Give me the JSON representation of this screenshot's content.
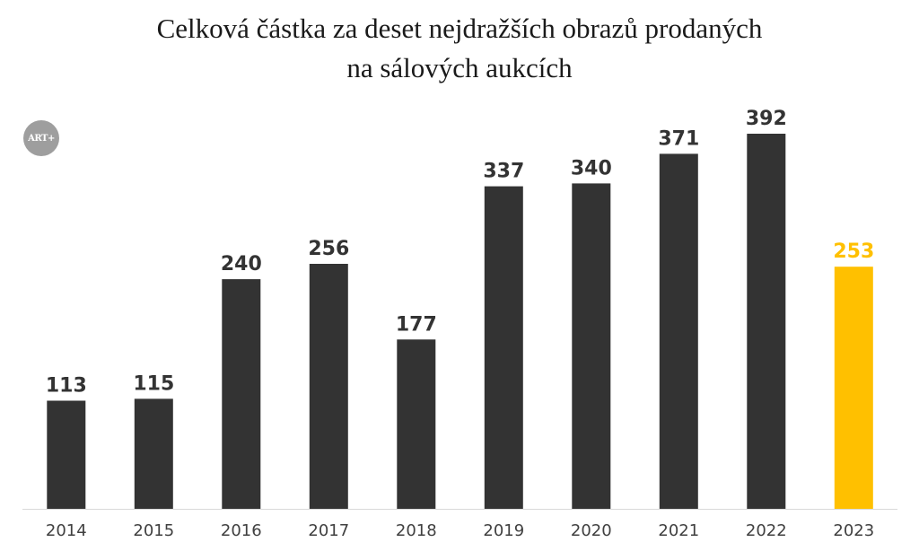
{
  "title_line1": "Celková částka za deset nejdražších obrazů prodaných",
  "title_line2": "na sálových aukcích",
  "logo_text": "ART+",
  "chart_data": {
    "type": "bar",
    "title": "Celková částka za deset nejdražších obrazů prodaných na sálových aukcích",
    "categories": [
      "2014",
      "2015",
      "2016",
      "2017",
      "2018",
      "2019",
      "2020",
      "2021",
      "2022",
      "2023"
    ],
    "values": [
      113,
      115,
      240,
      256,
      177,
      337,
      340,
      371,
      392,
      253
    ],
    "data_labels": [
      "113",
      "115",
      "240",
      "256",
      "177",
      "337",
      "340",
      "371",
      "392",
      "253"
    ],
    "xlabel": "",
    "ylabel": "",
    "ylim": [
      0,
      392
    ],
    "grid": false,
    "legend": "none",
    "bar_color": "#333333",
    "highlight_color": "#ffc000",
    "highlight_category": "2023",
    "label_color": "#333333",
    "axis_color": "#d9d9d9",
    "tick_label_color": "#404040"
  }
}
